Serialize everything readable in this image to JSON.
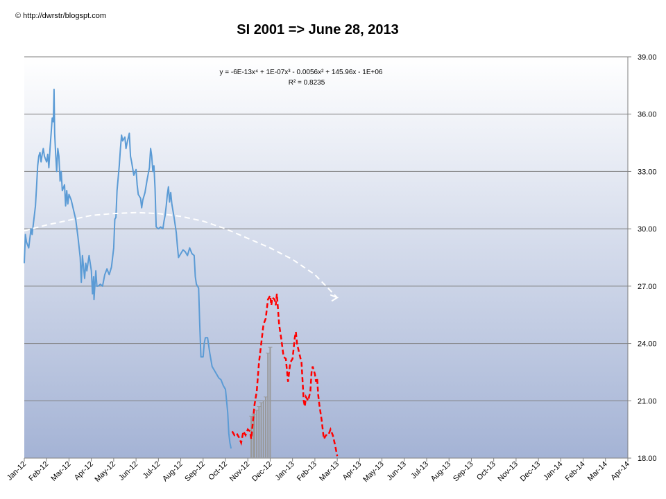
{
  "credit": "© http://dwrstr/blogspt.com",
  "chart_data": {
    "type": "line",
    "title": "SI 2001 => June 28, 2013",
    "xlabel": "",
    "ylabel": "",
    "ylim": [
      18,
      39
    ],
    "yticks": [
      "18.00",
      "21.00",
      "24.00",
      "27.00",
      "30.00",
      "33.00",
      "36.00",
      "39.00"
    ],
    "x_tick_labels": [
      "Jan-12",
      "Feb-12",
      "Mar-12",
      "Apr-12",
      "May-12",
      "Jun-12",
      "Jul-12",
      "Aug-12",
      "Sep-12",
      "Oct-12",
      "Nov-12",
      "Dec-12",
      "Jan-13",
      "Feb-13",
      "Mar-13",
      "Apr-13",
      "May-13",
      "Jun-13",
      "Jul-13",
      "Aug-13",
      "Sep-13",
      "Oct-13",
      "Nov-13",
      "Dec-13",
      "Jan-14",
      "Feb-14",
      "Mar-14",
      "Apr-14"
    ],
    "grid": true,
    "y_axis_side": "right",
    "trendline_equation": "y = -6E-13x⁴ + 1E-07x³ - 0.0056x² + 145.96x - 1E+06",
    "trendline_r2": "R² = 0.8235",
    "colors": {
      "actual": "#5b9bd5",
      "forecast": "#ff0000",
      "trend": "#ffffff",
      "errorbar": "#999999",
      "bg_top": "#ffffff",
      "bg_bottom": "#a4b3d5"
    },
    "series": [
      {
        "kind": "actual",
        "points": [
          [
            0,
            28.2
          ],
          [
            0.05,
            29.7
          ],
          [
            0.1,
            29.3
          ],
          [
            0.2,
            29.0
          ],
          [
            0.3,
            30.0
          ],
          [
            0.35,
            29.7
          ],
          [
            0.4,
            30.2
          ],
          [
            0.5,
            31.2
          ],
          [
            0.55,
            32.2
          ],
          [
            0.6,
            33.3
          ],
          [
            0.65,
            33.8
          ],
          [
            0.7,
            34.0
          ],
          [
            0.75,
            33.5
          ],
          [
            0.8,
            33.9
          ],
          [
            0.85,
            34.2
          ],
          [
            0.9,
            33.8
          ],
          [
            1.0,
            33.5
          ],
          [
            1.05,
            33.9
          ],
          [
            1.1,
            33.2
          ],
          [
            1.15,
            34.2
          ],
          [
            1.2,
            35.0
          ],
          [
            1.25,
            35.8
          ],
          [
            1.3,
            35.6
          ],
          [
            1.33,
            37.3
          ],
          [
            1.36,
            35.0
          ],
          [
            1.4,
            34.0
          ],
          [
            1.45,
            33.0
          ],
          [
            1.5,
            34.2
          ],
          [
            1.55,
            33.8
          ],
          [
            1.6,
            32.5
          ],
          [
            1.65,
            33.0
          ],
          [
            1.7,
            32.0
          ],
          [
            1.8,
            32.3
          ],
          [
            1.85,
            31.2
          ],
          [
            1.9,
            32.0
          ],
          [
            1.95,
            31.3
          ],
          [
            2.0,
            31.8
          ],
          [
            2.1,
            31.5
          ],
          [
            2.2,
            31.0
          ],
          [
            2.3,
            30.5
          ],
          [
            2.4,
            29.6
          ],
          [
            2.5,
            28.5
          ],
          [
            2.55,
            27.2
          ],
          [
            2.6,
            28.6
          ],
          [
            2.65,
            28.0
          ],
          [
            2.7,
            27.4
          ],
          [
            2.75,
            28.2
          ],
          [
            2.8,
            27.8
          ],
          [
            2.9,
            28.6
          ],
          [
            3.0,
            27.8
          ],
          [
            3.05,
            26.6
          ],
          [
            3.1,
            27.5
          ],
          [
            3.12,
            26.3
          ],
          [
            3.2,
            27.8
          ],
          [
            3.25,
            27.0
          ],
          [
            3.3,
            27.0
          ],
          [
            3.4,
            27.1
          ],
          [
            3.5,
            27.0
          ],
          [
            3.6,
            27.6
          ],
          [
            3.7,
            27.9
          ],
          [
            3.8,
            27.6
          ],
          [
            3.9,
            28.0
          ],
          [
            4.0,
            29.0
          ],
          [
            4.05,
            30.5
          ],
          [
            4.1,
            30.6
          ],
          [
            4.15,
            32.0
          ],
          [
            4.25,
            33.3
          ],
          [
            4.3,
            34.2
          ],
          [
            4.35,
            34.9
          ],
          [
            4.4,
            34.6
          ],
          [
            4.5,
            34.8
          ],
          [
            4.55,
            34.2
          ],
          [
            4.6,
            34.5
          ],
          [
            4.7,
            35.0
          ],
          [
            4.75,
            33.8
          ],
          [
            4.8,
            33.5
          ],
          [
            4.9,
            32.8
          ],
          [
            5.0,
            33.1
          ],
          [
            5.05,
            32.3
          ],
          [
            5.1,
            31.8
          ],
          [
            5.2,
            31.6
          ],
          [
            5.25,
            31.1
          ],
          [
            5.3,
            31.5
          ],
          [
            5.4,
            31.9
          ],
          [
            5.5,
            32.6
          ],
          [
            5.6,
            33.2
          ],
          [
            5.65,
            34.2
          ],
          [
            5.7,
            33.8
          ],
          [
            5.75,
            33.0
          ],
          [
            5.8,
            33.3
          ],
          [
            5.85,
            32.1
          ],
          [
            5.9,
            30.1
          ],
          [
            6.0,
            30.0
          ],
          [
            6.1,
            30.1
          ],
          [
            6.2,
            30.0
          ],
          [
            6.25,
            30.4
          ],
          [
            6.3,
            30.7
          ],
          [
            6.35,
            31.2
          ],
          [
            6.4,
            31.8
          ],
          [
            6.45,
            32.2
          ],
          [
            6.5,
            31.4
          ],
          [
            6.55,
            31.9
          ],
          [
            6.6,
            31.3
          ],
          [
            6.7,
            30.6
          ],
          [
            6.8,
            29.8
          ],
          [
            6.85,
            29.1
          ],
          [
            6.9,
            28.5
          ],
          [
            7.0,
            28.7
          ],
          [
            7.1,
            28.9
          ],
          [
            7.2,
            28.8
          ],
          [
            7.3,
            28.6
          ],
          [
            7.4,
            29.0
          ],
          [
            7.5,
            28.7
          ],
          [
            7.6,
            28.6
          ],
          [
            7.65,
            27.5
          ],
          [
            7.7,
            27.1
          ],
          [
            7.75,
            27.0
          ],
          [
            7.8,
            26.9
          ],
          [
            7.85,
            25.0
          ],
          [
            7.9,
            23.3
          ],
          [
            8.0,
            23.3
          ],
          [
            8.05,
            24.0
          ],
          [
            8.1,
            24.3
          ],
          [
            8.2,
            24.3
          ],
          [
            8.3,
            23.5
          ],
          [
            8.4,
            22.8
          ],
          [
            8.5,
            22.6
          ],
          [
            8.6,
            22.4
          ],
          [
            8.7,
            22.2
          ],
          [
            8.8,
            22.1
          ],
          [
            8.9,
            21.8
          ],
          [
            9.0,
            21.6
          ],
          [
            9.1,
            20.4
          ],
          [
            9.15,
            19.3
          ],
          [
            9.2,
            18.8
          ],
          [
            9.25,
            18.5
          ]
        ]
      },
      {
        "kind": "forecast",
        "points": [
          [
            9.3,
            19.4
          ],
          [
            9.4,
            19.2
          ],
          [
            9.5,
            19.3
          ],
          [
            9.6,
            19.1
          ],
          [
            9.7,
            18.8
          ],
          [
            9.8,
            19.4
          ],
          [
            9.9,
            19.2
          ],
          [
            10.0,
            19.5
          ],
          [
            10.1,
            19.4
          ],
          [
            10.15,
            19.0
          ],
          [
            10.2,
            19.6
          ],
          [
            10.3,
            20.8
          ],
          [
            10.4,
            21.5
          ],
          [
            10.5,
            23.0
          ],
          [
            10.6,
            24.0
          ],
          [
            10.7,
            25.0
          ],
          [
            10.8,
            25.3
          ],
          [
            10.9,
            26.3
          ],
          [
            11.0,
            26.5
          ],
          [
            11.05,
            26.0
          ],
          [
            11.1,
            26.4
          ],
          [
            11.2,
            26.3
          ],
          [
            11.25,
            26.0
          ],
          [
            11.3,
            26.6
          ],
          [
            11.4,
            25.0
          ],
          [
            11.5,
            24.2
          ],
          [
            11.6,
            23.3
          ],
          [
            11.7,
            23.2
          ],
          [
            11.8,
            22.0
          ],
          [
            11.9,
            23.0
          ],
          [
            12.0,
            23.2
          ],
          [
            12.1,
            24.3
          ],
          [
            12.15,
            24.6
          ],
          [
            12.2,
            24.0
          ],
          [
            12.3,
            23.5
          ],
          [
            12.4,
            23.0
          ],
          [
            12.45,
            22.0
          ],
          [
            12.5,
            21.0
          ],
          [
            12.55,
            20.7
          ],
          [
            12.6,
            21.2
          ],
          [
            12.7,
            21.0
          ],
          [
            12.8,
            21.5
          ],
          [
            12.85,
            22.5
          ],
          [
            12.9,
            22.8
          ],
          [
            13.0,
            22.4
          ],
          [
            13.05,
            22.0
          ],
          [
            13.1,
            22.2
          ],
          [
            13.15,
            21.3
          ],
          [
            13.2,
            20.8
          ],
          [
            13.3,
            20.0
          ],
          [
            13.4,
            19.0
          ],
          [
            13.5,
            19.2
          ],
          [
            13.6,
            19.2
          ],
          [
            13.7,
            19.5
          ],
          [
            13.8,
            19.2
          ],
          [
            13.9,
            18.7
          ],
          [
            14.0,
            18.1
          ]
        ]
      },
      {
        "kind": "trend",
        "points": [
          [
            0,
            29.9
          ],
          [
            1,
            30.2
          ],
          [
            2,
            30.45
          ],
          [
            3,
            30.7
          ],
          [
            4,
            30.8
          ],
          [
            5,
            30.85
          ],
          [
            6,
            30.8
          ],
          [
            7,
            30.65
          ],
          [
            8,
            30.4
          ],
          [
            9,
            30.0
          ],
          [
            10,
            29.5
          ],
          [
            11,
            29.0
          ],
          [
            12,
            28.4
          ],
          [
            13,
            27.6
          ],
          [
            14,
            26.4
          ]
        ]
      }
    ],
    "errorbars": [
      {
        "x": 10.15,
        "low": 18.0,
        "high": 20.2
      },
      {
        "x": 10.25,
        "low": 18.0,
        "high": 20.3
      },
      {
        "x": 10.3,
        "low": 18.0,
        "high": 20.3
      },
      {
        "x": 10.4,
        "low": 18.0,
        "high": 20.5
      },
      {
        "x": 10.5,
        "low": 18.0,
        "high": 20.7
      },
      {
        "x": 10.6,
        "low": 18.0,
        "high": 20.9
      },
      {
        "x": 10.7,
        "low": 18.0,
        "high": 21.0
      },
      {
        "x": 10.8,
        "low": 18.0,
        "high": 21.2
      },
      {
        "x": 10.9,
        "low": 18.0,
        "high": 23.5
      },
      {
        "x": 11.0,
        "low": 18.0,
        "high": 23.8
      }
    ]
  }
}
